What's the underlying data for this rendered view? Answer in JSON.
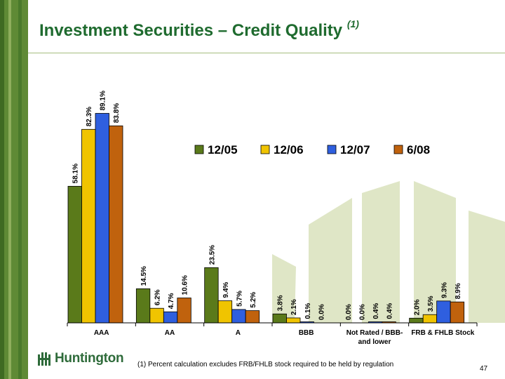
{
  "title": "Investment Securities – Credit Quality",
  "title_note": "(1)",
  "footnote": "(1)  Percent calculation excludes FRB/FHLB stock required to be held by regulation",
  "page_number": "47",
  "logo_text": "Huntington",
  "colors": {
    "brand_green": "#1f6b2f",
    "sidebar_green": "#5f8a35",
    "watermark": "#dfe6c6"
  },
  "chart_data": {
    "type": "bar",
    "title": "",
    "xlabel": "",
    "ylabel": "",
    "ylim": [
      0,
      100
    ],
    "categories": [
      "AAA",
      "AA",
      "A",
      "BBB",
      "Not Rated / BBB- and lower",
      "FRB & FHLB Stock"
    ],
    "series": [
      {
        "name": "12/05",
        "color": "#5a7a1a",
        "values": [
          58.1,
          14.5,
          23.5,
          3.8,
          0.0,
          2.0
        ],
        "labels": [
          "58.1%",
          "14.5%",
          "23.5%",
          "3.8%",
          "0.0%",
          "2.0%"
        ]
      },
      {
        "name": "12/06",
        "color": "#f0c400",
        "values": [
          82.3,
          6.2,
          9.4,
          2.1,
          0.0,
          3.5
        ],
        "labels": [
          "82.3%",
          "6.2%",
          "9.4%",
          "2.1%",
          "0.0%",
          "3.5%"
        ]
      },
      {
        "name": "12/07",
        "color": "#2f5fdf",
        "values": [
          89.1,
          4.7,
          5.7,
          0.1,
          0.4,
          9.3
        ],
        "labels": [
          "89.1%",
          "4.7%",
          "5.7%",
          "0.1%",
          "0.4%",
          "9.3%"
        ]
      },
      {
        "name": "6/08",
        "color": "#c0620d",
        "values": [
          83.8,
          10.6,
          5.2,
          0.0,
          0.4,
          8.9
        ],
        "labels": [
          "83.8%",
          "10.6%",
          "5.2%",
          "0.0%",
          "0.4%",
          "8.9%"
        ]
      }
    ],
    "legend_position": "top-right",
    "grid": false
  }
}
